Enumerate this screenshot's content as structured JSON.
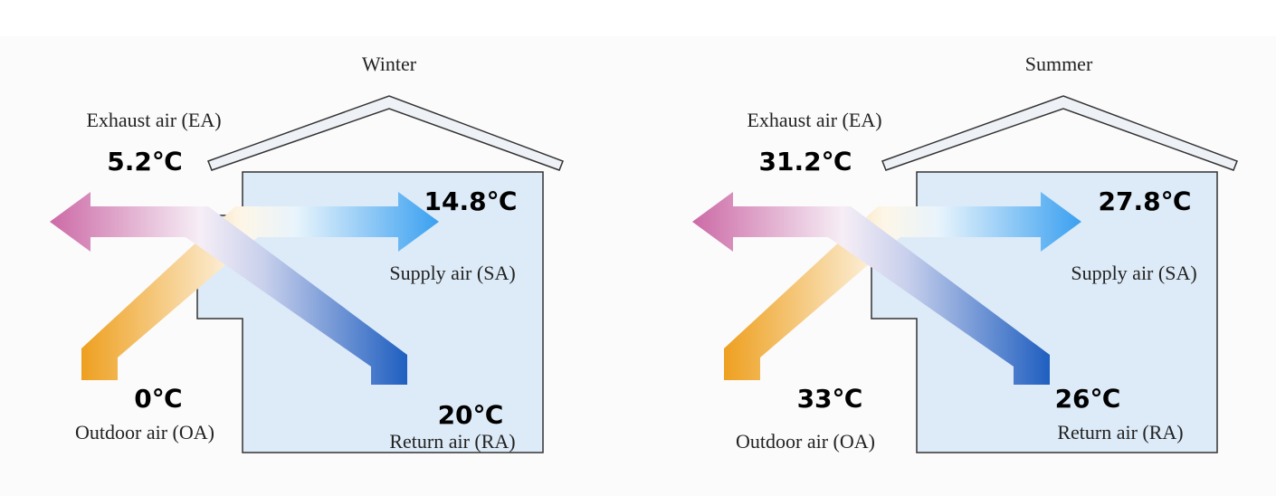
{
  "panels": [
    {
      "title": "Winter",
      "exhaust_label": "Exhaust air (EA)",
      "exhaust_temp": "5.2℃",
      "supply_temp": "14.8℃",
      "supply_label": "Supply air (SA)",
      "outdoor_temp": "0℃",
      "outdoor_label": "Outdoor air  (OA)",
      "return_temp": "20℃",
      "return_label": "Return air (RA)"
    },
    {
      "title": "Summer",
      "exhaust_label": "Exhaust air (EA)",
      "exhaust_temp": "31.2℃",
      "supply_temp": "27.8℃",
      "supply_label": "Supply air (SA)",
      "outdoor_temp": "33℃",
      "outdoor_label": "Outdoor air  (OA)",
      "return_temp": "26℃",
      "return_label": "Return air (RA)"
    }
  ]
}
